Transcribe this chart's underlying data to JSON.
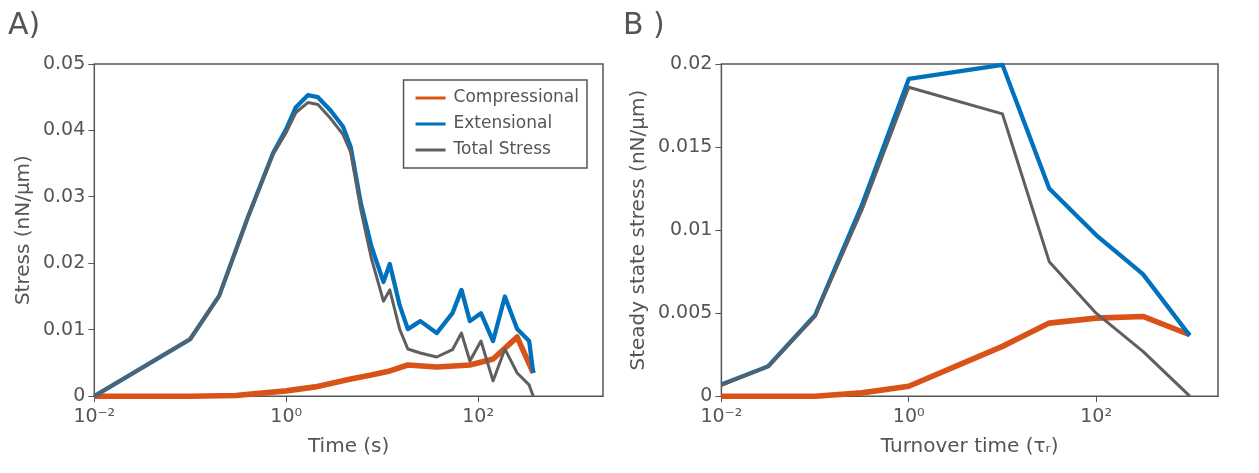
{
  "chart_data": [
    {
      "type": "line",
      "title": "A)",
      "xlabel": "Time (s)",
      "ylabel": "Stress (nN/µm)",
      "log": "x",
      "xlim": [
        0.01,
        2000
      ],
      "xticks": [
        {
          "value": 0.01,
          "label": "10⁻²"
        },
        {
          "value": 1,
          "label": "10⁰"
        },
        {
          "value": 100,
          "label": "10²"
        }
      ],
      "ylim": [
        0,
        0.05
      ],
      "yticks": [
        0,
        0.01,
        0.02,
        0.03,
        0.04,
        0.05
      ],
      "legend": "top right",
      "grid": false,
      "series": [
        {
          "name": "Compressional",
          "color": "#d95319",
          "x": [
            0.01,
            0.1,
            0.3,
            1,
            2,
            4.7,
            7.7,
            12,
            18.5,
            37,
            82,
            143,
            255,
            375
          ],
          "values": [
            0,
            0,
            0.0001,
            0.0008,
            0.0014,
            0.0026,
            0.0032,
            0.0038,
            0.0047,
            0.0044,
            0.0047,
            0.0056,
            0.0089,
            0.0035
          ]
        },
        {
          "name": "Extensional",
          "color": "#0072bd",
          "x": [
            0.01,
            0.1,
            0.2,
            0.4,
            0.73,
            1,
            1.26,
            1.68,
            2.14,
            2.9,
            3.9,
            4.7,
            6,
            7.7,
            10.3,
            12,
            15.2,
            18.5,
            25,
            37,
            54,
            67,
            82,
            107,
            143,
            190,
            255,
            340,
            375
          ],
          "values": [
            0,
            0.0086,
            0.0151,
            0.027,
            0.0366,
            0.0402,
            0.0435,
            0.0453,
            0.045,
            0.043,
            0.0406,
            0.0375,
            0.029,
            0.0226,
            0.0172,
            0.0199,
            0.0137,
            0.0101,
            0.0113,
            0.0095,
            0.0125,
            0.016,
            0.0113,
            0.0125,
            0.0083,
            0.015,
            0.0101,
            0.0083,
            0.0035
          ]
        },
        {
          "name": "Total Stress",
          "color": "#5f5f5f",
          "x": [
            0.01,
            0.1,
            0.2,
            0.4,
            0.73,
            1,
            1.26,
            1.68,
            2.14,
            2.9,
            3.9,
            4.7,
            6,
            7.7,
            10.3,
            12,
            15.2,
            18.5,
            25,
            37,
            54,
            67,
            82,
            107,
            143,
            190,
            255,
            340,
            375
          ],
          "values": [
            0,
            0.0086,
            0.0151,
            0.027,
            0.0364,
            0.0397,
            0.0427,
            0.0442,
            0.0439,
            0.0418,
            0.0394,
            0.0367,
            0.028,
            0.0208,
            0.0143,
            0.016,
            0.0101,
            0.0071,
            0.0065,
            0.0059,
            0.007,
            0.0095,
            0.0053,
            0.0083,
            0.0023,
            0.0071,
            0.0035,
            0.0017,
            0
          ]
        }
      ]
    },
    {
      "type": "line",
      "title": "B )",
      "xlabel": "Turnover time (τᵣ)",
      "ylabel": "Steady state stress (nN/µm)",
      "log": "x",
      "xlim": [
        0.01,
        2000
      ],
      "xticks": [
        {
          "value": 0.01,
          "label": "10⁻²"
        },
        {
          "value": 1,
          "label": "10⁰"
        },
        {
          "value": 100,
          "label": "10²"
        }
      ],
      "ylim": [
        0,
        0.02
      ],
      "yticks": [
        0,
        0.005,
        0.01,
        0.015,
        0.02
      ],
      "grid": false,
      "x": [
        0.01,
        0.0316,
        0.1,
        0.316,
        1,
        10,
        31.6,
        100,
        316,
        1000
      ],
      "series": [
        {
          "color": "#d95319",
          "values": [
            0,
            0,
            0,
            0.0002,
            0.0006,
            0.003,
            0.0044,
            0.0047,
            0.0048,
            0.0037
          ]
        },
        {
          "color": "#0072bd",
          "values": [
            0.0007,
            0.0018,
            0.00487,
            0.0115,
            0.0191,
            0.01995,
            0.0125,
            0.0097,
            0.00735,
            0.00365
          ]
        },
        {
          "color": "#5f5f5f",
          "values": [
            0.00066,
            0.0018,
            0.0048,
            0.0112,
            0.0186,
            0.017,
            0.0081,
            0.005,
            0.0027,
            0
          ]
        }
      ]
    }
  ]
}
